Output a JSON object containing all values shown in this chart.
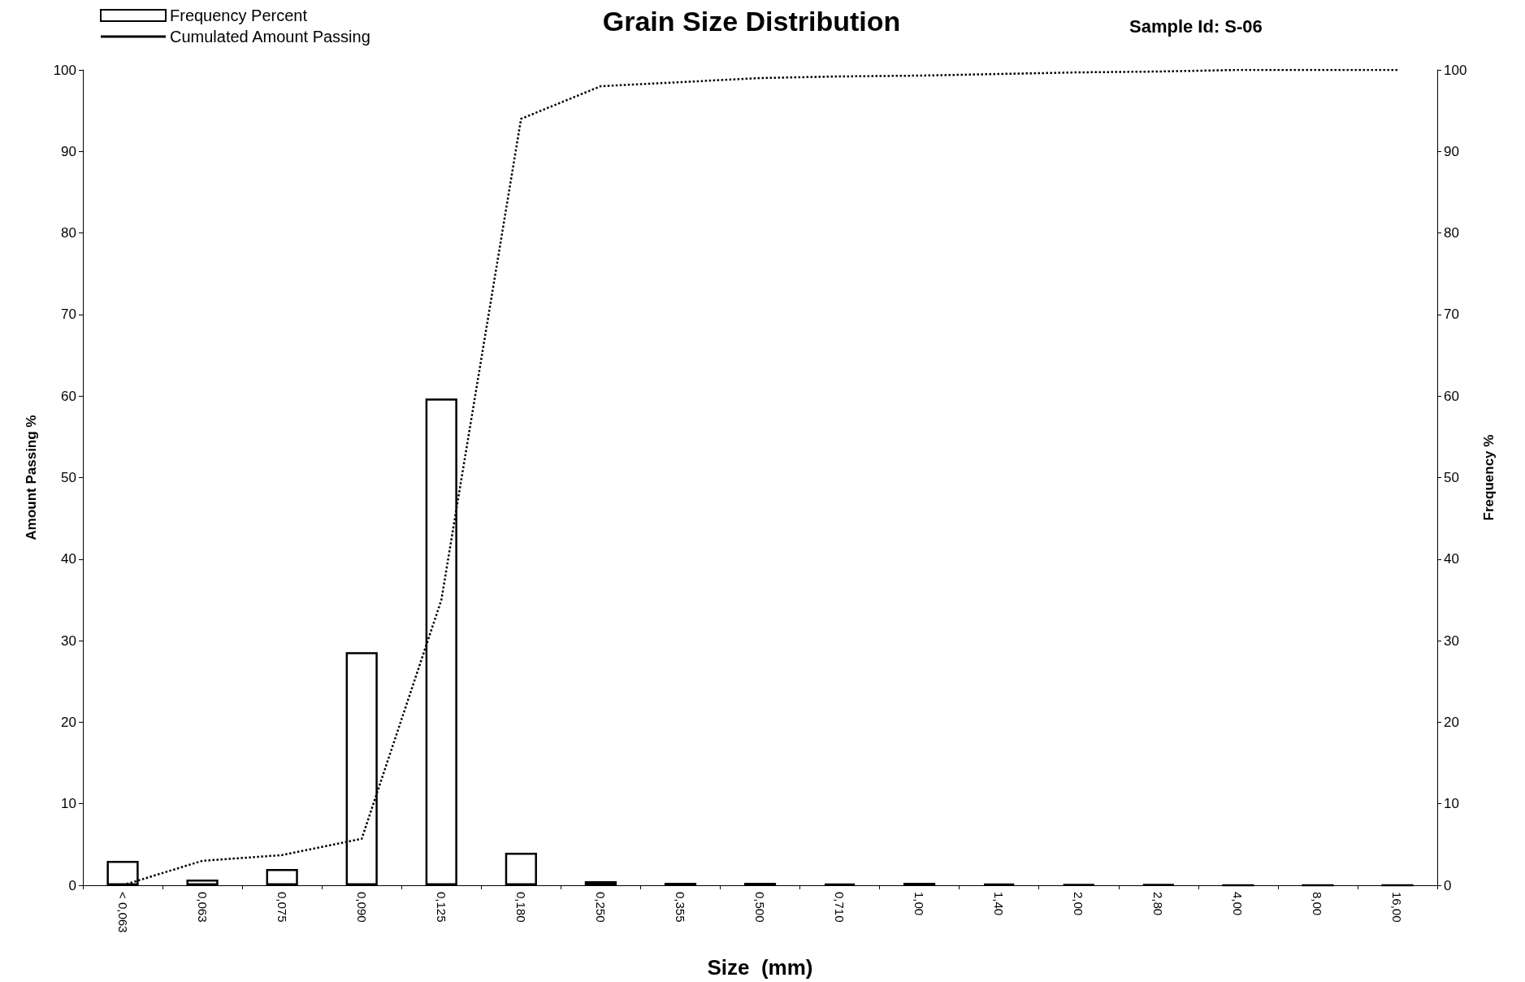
{
  "chart_data": {
    "type": "bar",
    "title": "Grain Size Distribution",
    "xlabel": "Size  (mm)",
    "ylabel": "Amount Passing %",
    "y2label": "Frequency %",
    "annotations": [
      "Sample Id: S-06"
    ],
    "categories": [
      "< 0,063",
      "0,063",
      "0,075",
      "0,090",
      "0,125",
      "0,180",
      "0,250",
      "0,355",
      "0,500",
      "0,710",
      "1,00",
      "1,40",
      "2,00",
      "2,80",
      "4,00",
      "8,00",
      "16,00"
    ],
    "series": [
      {
        "name": "Frequency Percent",
        "axis": "y2",
        "color": "#000000",
        "values": [
          3.0,
          0.7,
          2.0,
          28.6,
          59.7,
          4.0,
          0.5,
          0.3,
          0.3,
          0.2,
          0.3,
          0.2,
          0.1,
          0.1,
          0,
          0,
          0
        ]
      },
      {
        "name": "Cumulated Amount Passing",
        "type": "line",
        "axis": "y",
        "color": "#000000",
        "line_style": "dotted",
        "marker": "none",
        "values": [
          0,
          3.0,
          3.7,
          5.7,
          35,
          94,
          98,
          98.5,
          99,
          99.2,
          99.3,
          99.5,
          99.7,
          99.8,
          100,
          100,
          100
        ]
      }
    ],
    "ylim": [
      0,
      100
    ],
    "yticks": [
      0,
      10,
      20,
      30,
      40,
      50,
      60,
      70,
      80,
      90,
      100
    ],
    "y2lim": [
      0,
      100
    ],
    "y2ticks": [
      0,
      10,
      20,
      30,
      40,
      50,
      60,
      70,
      80,
      90,
      100
    ],
    "grid": false,
    "legend": "top left"
  }
}
